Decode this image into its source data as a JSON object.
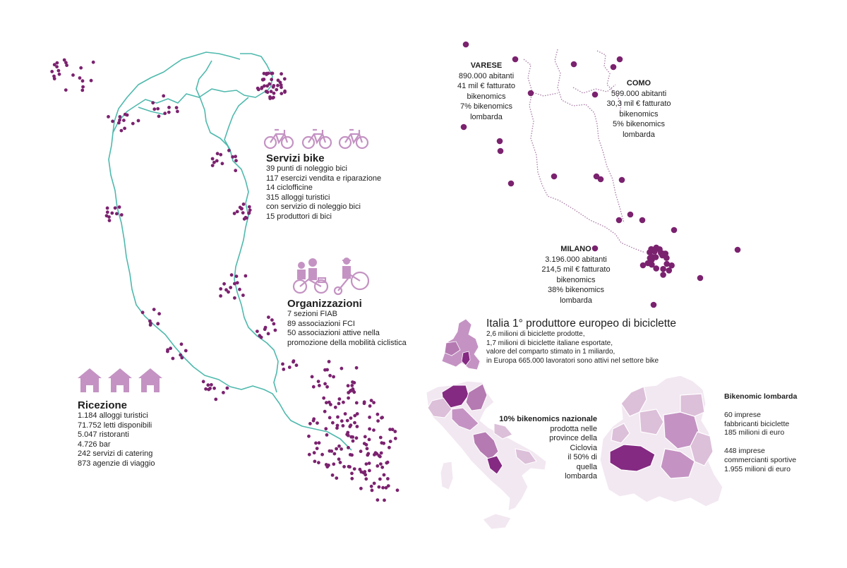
{
  "colors": {
    "route": "#4fb9ad",
    "dot": "#7b226f",
    "icon": "#c493c3",
    "region_dark": "#842a82",
    "region_mid": "#b57ab2",
    "region_light": "#dcbfd9",
    "region_pale": "#f2e8f1",
    "border": "#c9b8c7"
  },
  "servizi_bike": {
    "icon": "bicycle-icon",
    "title": "Servizi bike",
    "lines": [
      "39 punti di noleggio bici",
      "117 esercizi vendita e riparazione",
      "14 ciclofficine",
      "315 alloggi turistici",
      "con servizio di noleggio bici",
      "15 produttori di bici"
    ]
  },
  "organizzazioni": {
    "icon": "cyclists-icon",
    "title": "Organizzazioni",
    "lines": [
      "7 sezioni FIAB",
      "89 associazioni FCI",
      "50 associazioni attive nella",
      "promozione della mobilità ciclistica"
    ]
  },
  "ricezione": {
    "icon": "house-icon",
    "title": "Ricezione",
    "lines": [
      "1.184 alloggi turistici",
      "71.752 letti disponibili",
      "5.047 ristoranti",
      "4.726 bar",
      "242 servizi di catering",
      "873 agenzie di viaggio"
    ]
  },
  "cities": [
    {
      "id": "varese",
      "name": "VARESE",
      "lines": [
        "890.000 abitanti",
        "41 mil € fatturato",
        "bikenomics",
        "7% bikenomics",
        "lombarda"
      ]
    },
    {
      "id": "como",
      "name": "COMO",
      "lines": [
        "599.000 abitanti",
        "30,3 mil € fatturato",
        "bikenomics",
        "5% bikenomics",
        "lombarda"
      ]
    },
    {
      "id": "milano",
      "name": "MILANO",
      "lines": [
        "3.196.000 abitanti",
        "214,5 mil € fatturato",
        "bikenomics",
        "38% bikenomics",
        "lombarda"
      ]
    }
  ],
  "italia": {
    "title": "Italia 1° produttore europeo di biciclette",
    "lines": [
      "2,6 milioni di biciclette prodotte,",
      "1,7 milioni di biciclette italiane esportate,",
      "valore del comparto stimato in 1 miliardo,",
      "in Europa 665.000 lavoratori sono attivi nel settore bike"
    ]
  },
  "nazionale": {
    "title": "10% bikenomics nazionale",
    "lines": [
      "prodotta nelle",
      "province della",
      "Ciclovia",
      "il 50% di",
      "quella",
      "lombarda"
    ]
  },
  "lombarda": {
    "title": "Bikenomic lombarda",
    "lines": [
      "60 imprese",
      "fabbricanti biciclette",
      "185 milioni di euro",
      "",
      "448 imprese",
      "commercianti sportive",
      "1.955 milioni di euro"
    ]
  }
}
